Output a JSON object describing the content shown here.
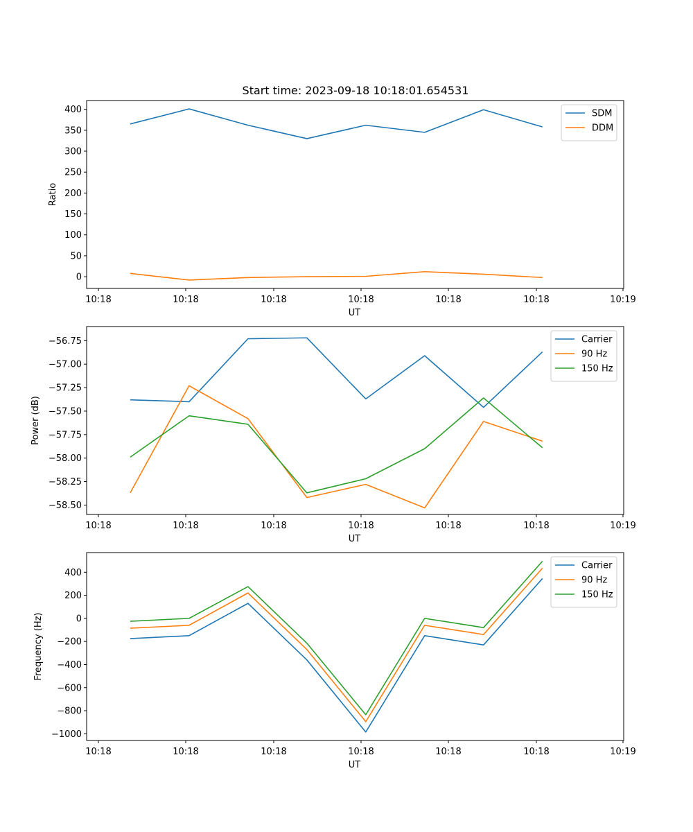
{
  "figure_title": "Start time: 2023-09-18 10:18:01.654531",
  "chart_data": [
    {
      "type": "line",
      "title": "Start time: 2023-09-18 10:18:01.654531",
      "xlabel": "UT",
      "ylabel": "Ratio",
      "x_ticks": [
        "10:18",
        "10:18",
        "10:18",
        "10:18",
        "10:18",
        "10:18",
        "10:18",
        "10:19"
      ],
      "y_ticks": [
        "0",
        "50",
        "100",
        "150",
        "200",
        "250",
        "300",
        "350",
        "400"
      ],
      "ylim": [
        -28,
        421
      ],
      "grid": false,
      "legend_position": "top-right",
      "series": [
        {
          "name": "SDM",
          "color": "#1f77b4",
          "values": [
            365,
            401,
            362,
            330,
            362,
            345,
            399,
            358
          ]
        },
        {
          "name": "DDM",
          "color": "#ff7f0e",
          "values": [
            8,
            -8,
            -2,
            0,
            1,
            12,
            6,
            -2
          ]
        }
      ]
    },
    {
      "type": "line",
      "xlabel": "UT",
      "ylabel": "Power (dB)",
      "x_ticks": [
        "10:18",
        "10:18",
        "10:18",
        "10:18",
        "10:18",
        "10:18",
        "10:18",
        "10:19"
      ],
      "y_ticks": [
        "−58.50",
        "−58.25",
        "−58.00",
        "−57.75",
        "−57.50",
        "−57.25",
        "−57.00",
        "−56.75"
      ],
      "ylim": [
        -58.6,
        -56.6
      ],
      "grid": false,
      "legend_position": "top-right",
      "series": [
        {
          "name": "Carrier",
          "color": "#1f77b4",
          "values": [
            -57.38,
            -57.4,
            -56.73,
            -56.72,
            -57.37,
            -56.91,
            -57.46,
            -56.87
          ]
        },
        {
          "name": "90 Hz",
          "color": "#ff7f0e",
          "values": [
            -58.37,
            -57.23,
            -57.58,
            -58.42,
            -58.28,
            -58.53,
            -57.61,
            -57.82
          ]
        },
        {
          "name": "150 Hz",
          "color": "#2ca02c",
          "values": [
            -57.99,
            -57.55,
            -57.64,
            -58.37,
            -58.22,
            -57.9,
            -57.36,
            -57.89
          ]
        }
      ]
    },
    {
      "type": "line",
      "xlabel": "UT",
      "ylabel": "Frequency (Hz)",
      "x_ticks": [
        "10:18",
        "10:18",
        "10:18",
        "10:18",
        "10:18",
        "10:18",
        "10:18",
        "10:19"
      ],
      "y_ticks": [
        "−1000",
        "−800",
        "−600",
        "−400",
        "−200",
        "0",
        "200",
        "400"
      ],
      "ylim": [
        -1058,
        570
      ],
      "grid": false,
      "legend_position": "top-right",
      "series": [
        {
          "name": "Carrier",
          "color": "#1f77b4",
          "values": [
            -175,
            -150,
            130,
            -360,
            -985,
            -150,
            -230,
            345
          ]
        },
        {
          "name": "90 Hz",
          "color": "#ff7f0e",
          "values": [
            -85,
            -60,
            220,
            -270,
            -895,
            -60,
            -140,
            435
          ]
        },
        {
          "name": "150 Hz",
          "color": "#2ca02c",
          "values": [
            -25,
            0,
            275,
            -215,
            -835,
            0,
            -80,
            495
          ]
        }
      ]
    }
  ]
}
